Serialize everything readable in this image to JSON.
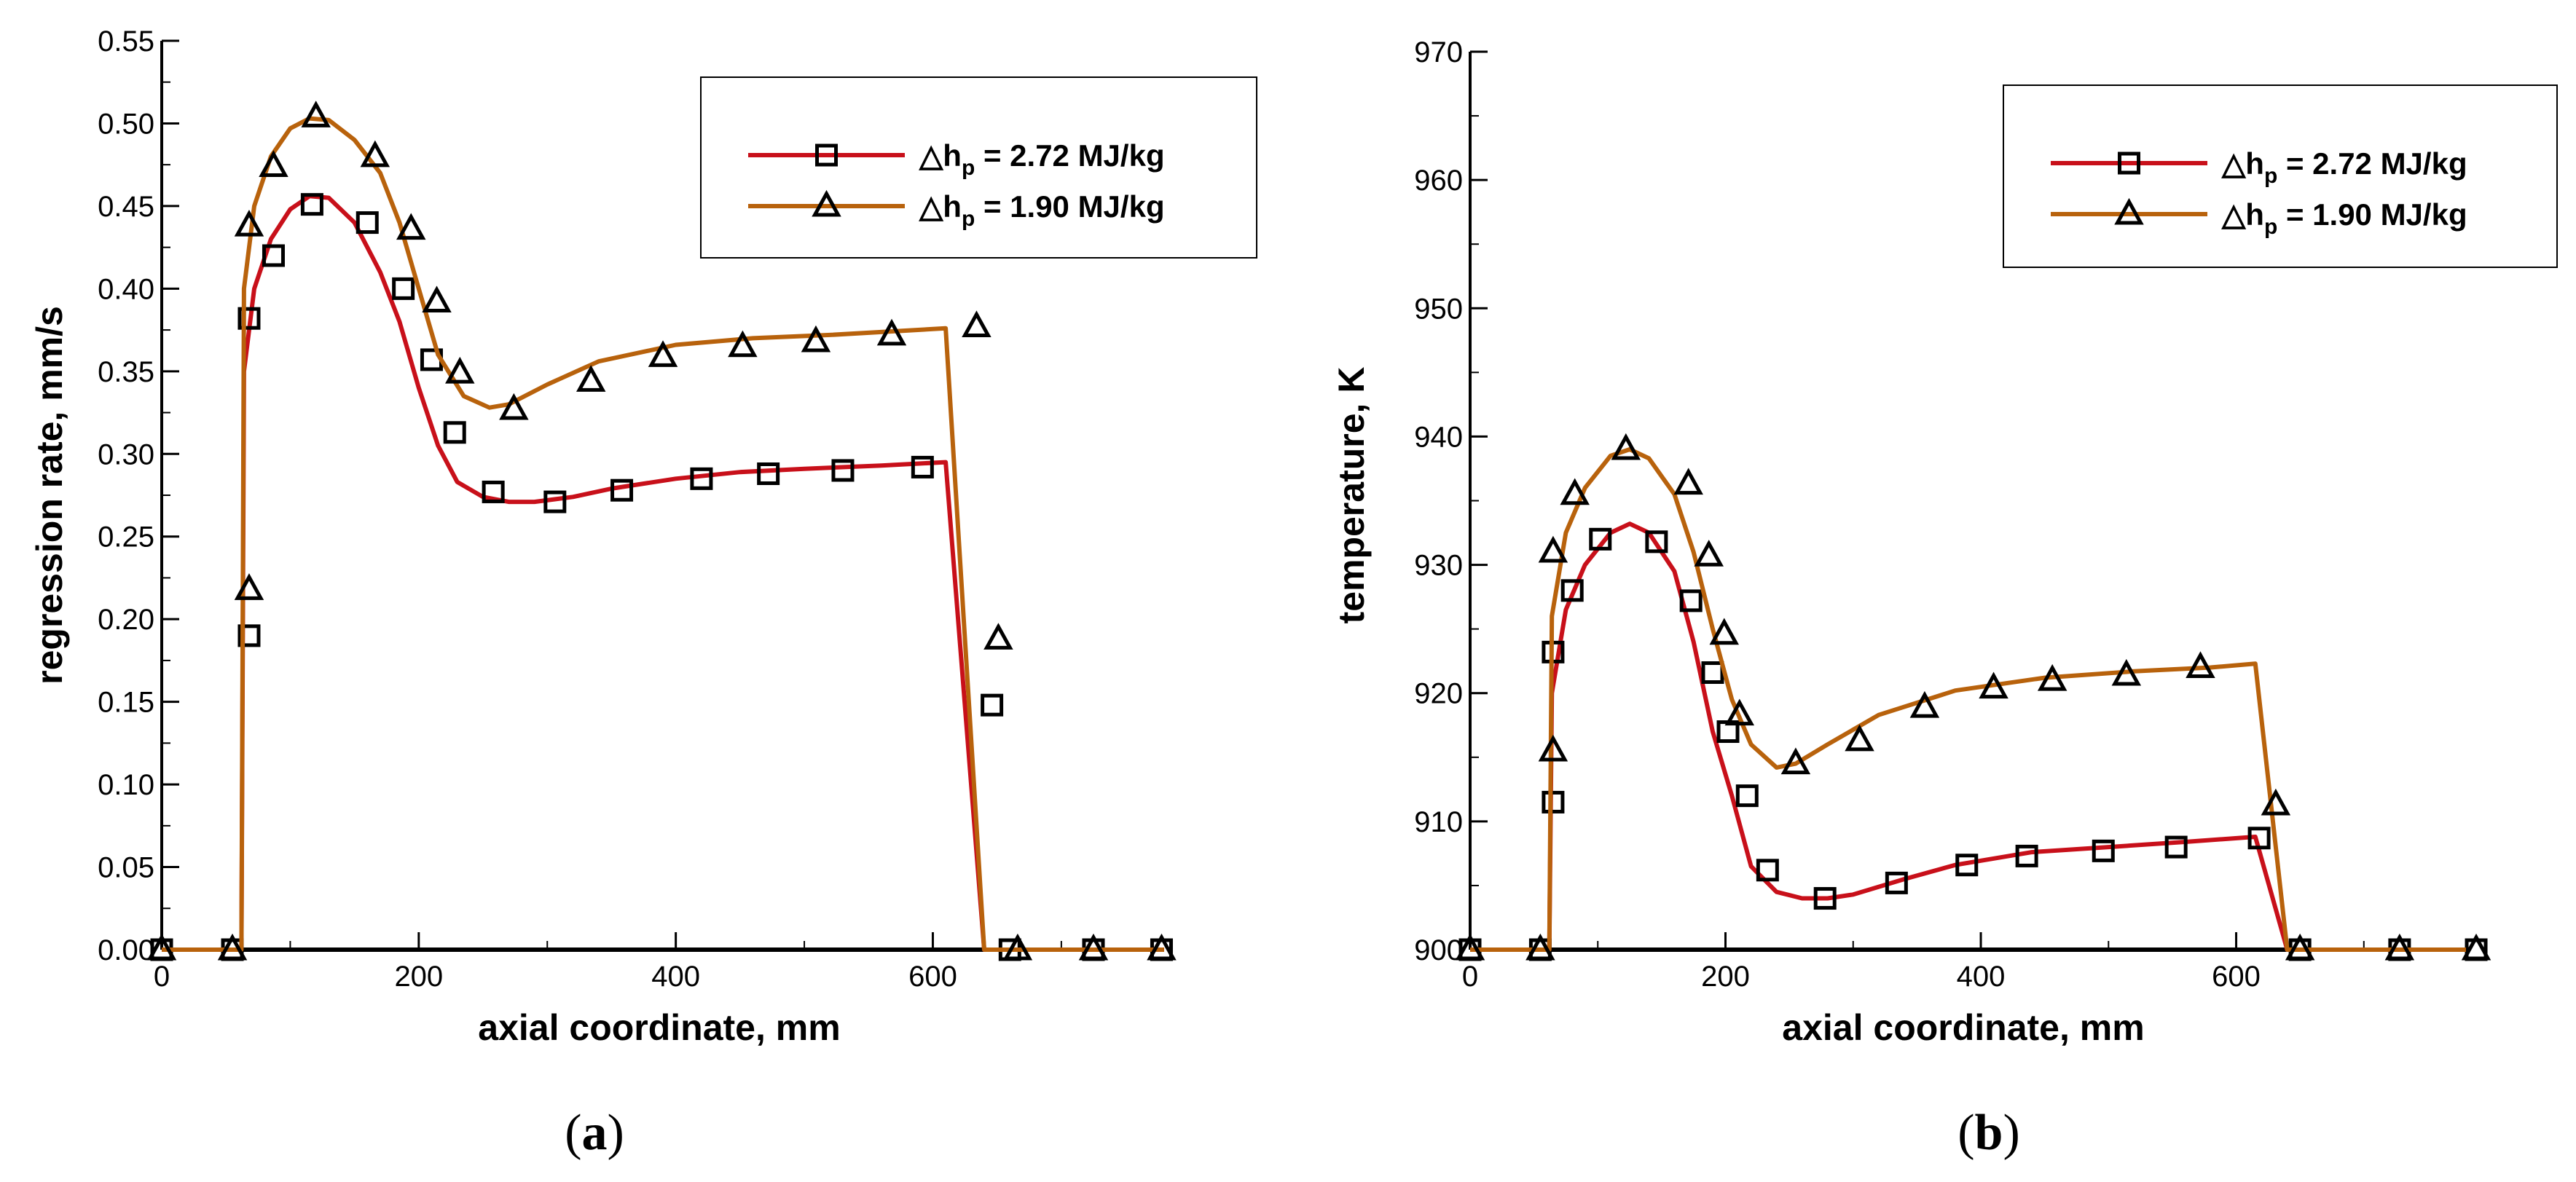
{
  "colors": {
    "series1": "#c8101a",
    "series2": "#b8620c",
    "axis": "#000000"
  },
  "chart_data": [
    {
      "type": "line",
      "caption_letter": "a",
      "xlabel": "axial coordinate, mm",
      "ylabel": "regression rate, mm/s",
      "xlim": [
        0,
        780
      ],
      "ylim": [
        0,
        0.55
      ],
      "xticks": [
        0,
        200,
        400,
        600
      ],
      "xtick_labels": [
        "0",
        "200",
        "400",
        "600"
      ],
      "yticks": [
        0,
        0.05,
        0.1,
        0.15,
        0.2,
        0.25,
        0.3,
        0.35,
        0.4,
        0.45,
        0.5,
        0.55
      ],
      "ytick_labels": [
        "0.00",
        "0.05",
        "0.10",
        "0.15",
        "0.20",
        "0.25",
        "0.30",
        "0.35",
        "0.40",
        "0.45",
        "0.50",
        "0.55"
      ],
      "legend_position": "top-right",
      "series": [
        {
          "name": "2.72 MJ/kg",
          "legend_prefix": "△h",
          "legend_sub": "p",
          "legend_suffix": " = 2.72 MJ/kg",
          "marker": "square",
          "color_key": "series1",
          "curve": [
            [
              0,
              0
            ],
            [
              62,
              0
            ],
            [
              64,
              0.35
            ],
            [
              72,
              0.4
            ],
            [
              85,
              0.43
            ],
            [
              100,
              0.448
            ],
            [
              115,
              0.456
            ],
            [
              130,
              0.455
            ],
            [
              150,
              0.44
            ],
            [
              170,
              0.41
            ],
            [
              185,
              0.38
            ],
            [
              200,
              0.34
            ],
            [
              215,
              0.305
            ],
            [
              230,
              0.283
            ],
            [
              250,
              0.274
            ],
            [
              270,
              0.271
            ],
            [
              290,
              0.271
            ],
            [
              320,
              0.274
            ],
            [
              350,
              0.279
            ],
            [
              400,
              0.285
            ],
            [
              450,
              0.289
            ],
            [
              500,
              0.291
            ],
            [
              560,
              0.293
            ],
            [
              610,
              0.295
            ],
            [
              640,
              0
            ],
            [
              780,
              0
            ]
          ],
          "markers": [
            [
              0,
              0
            ],
            [
              55,
              0
            ],
            [
              68,
              0.19
            ],
            [
              68,
              0.382
            ],
            [
              87,
              0.42
            ],
            [
              117,
              0.451
            ],
            [
              160,
              0.44
            ],
            [
              188,
              0.4
            ],
            [
              210,
              0.357
            ],
            [
              228,
              0.313
            ],
            [
              258,
              0.277
            ],
            [
              306,
              0.271
            ],
            [
              358,
              0.278
            ],
            [
              420,
              0.285
            ],
            [
              472,
              0.288
            ],
            [
              530,
              0.29
            ],
            [
              592,
              0.292
            ],
            [
              646,
              0.148
            ],
            [
              660,
              0
            ],
            [
              725,
              0
            ],
            [
              778,
              0
            ]
          ]
        },
        {
          "name": "1.90 MJ/kg",
          "legend_prefix": "△h",
          "legend_sub": "p",
          "legend_suffix": " = 1.90 MJ/kg",
          "marker": "triangle",
          "color_key": "series2",
          "curve": [
            [
              0,
              0
            ],
            [
              62,
              0
            ],
            [
              64,
              0.4
            ],
            [
              72,
              0.45
            ],
            [
              85,
              0.48
            ],
            [
              100,
              0.497
            ],
            [
              115,
              0.503
            ],
            [
              130,
              0.502
            ],
            [
              150,
              0.49
            ],
            [
              170,
              0.47
            ],
            [
              185,
              0.44
            ],
            [
              200,
              0.4
            ],
            [
              215,
              0.36
            ],
            [
              235,
              0.335
            ],
            [
              255,
              0.328
            ],
            [
              270,
              0.33
            ],
            [
              300,
              0.342
            ],
            [
              340,
              0.356
            ],
            [
              400,
              0.366
            ],
            [
              460,
              0.37
            ],
            [
              520,
              0.372
            ],
            [
              610,
              0.376
            ],
            [
              640,
              0
            ],
            [
              780,
              0
            ]
          ],
          "markers": [
            [
              0,
              0
            ],
            [
              55,
              0
            ],
            [
              68,
              0.218
            ],
            [
              68,
              0.438
            ],
            [
              87,
              0.474
            ],
            [
              120,
              0.504
            ],
            [
              166,
              0.48
            ],
            [
              194,
              0.436
            ],
            [
              214,
              0.392
            ],
            [
              232,
              0.349
            ],
            [
              274,
              0.327
            ],
            [
              334,
              0.344
            ],
            [
              390,
              0.359
            ],
            [
              452,
              0.365
            ],
            [
              509,
              0.368
            ],
            [
              568,
              0.372
            ],
            [
              634,
              0.377
            ],
            [
              651,
              0.188
            ],
            [
              666,
              0
            ],
            [
              725,
              0
            ],
            [
              778,
              0
            ]
          ]
        }
      ]
    },
    {
      "type": "line",
      "caption_letter": "b",
      "xlabel": "axial coordinate, mm",
      "ylabel": "temperature, K",
      "xlim": [
        0,
        780
      ],
      "ylim": [
        900,
        970
      ],
      "xticks": [
        0,
        200,
        400,
        600
      ],
      "xtick_labels": [
        "0",
        "200",
        "400",
        "600"
      ],
      "yticks": [
        900,
        910,
        920,
        930,
        940,
        950,
        960,
        970
      ],
      "ytick_labels": [
        "900",
        "910",
        "920",
        "930",
        "940",
        "950",
        "960",
        "970"
      ],
      "legend_position": "top-right",
      "series": [
        {
          "name": "2.72 MJ/kg",
          "legend_prefix": "△h",
          "legend_sub": "p",
          "legend_suffix": " = 2.72 MJ/kg",
          "marker": "square",
          "color_key": "series1",
          "curve": [
            [
              0,
              900
            ],
            [
              62,
              900
            ],
            [
              64,
              920
            ],
            [
              75,
              926.5
            ],
            [
              90,
              930
            ],
            [
              110,
              932.5
            ],
            [
              125,
              933.2
            ],
            [
              140,
              932.5
            ],
            [
              160,
              929.5
            ],
            [
              175,
              924
            ],
            [
              190,
              917
            ],
            [
              205,
              912
            ],
            [
              220,
              906.5
            ],
            [
              240,
              904.5
            ],
            [
              260,
              904
            ],
            [
              280,
              904
            ],
            [
              300,
              904.3
            ],
            [
              340,
              905.5
            ],
            [
              380,
              906.6
            ],
            [
              440,
              907.6
            ],
            [
              500,
              908
            ],
            [
              560,
              908.4
            ],
            [
              615,
              908.8
            ],
            [
              640,
              900
            ],
            [
              780,
              900
            ]
          ],
          "markers": [
            [
              0,
              900
            ],
            [
              55,
              900
            ],
            [
              65,
              911.5
            ],
            [
              65,
              923.2
            ],
            [
              80,
              928
            ],
            [
              102,
              932
            ],
            [
              146,
              931.8
            ],
            [
              173,
              927.2
            ],
            [
              190,
              921.6
            ],
            [
              202,
              917
            ],
            [
              217,
              912
            ],
            [
              233,
              906.2
            ],
            [
              278,
              904
            ],
            [
              334,
              905.2
            ],
            [
              389,
              906.6
            ],
            [
              436,
              907.3
            ],
            [
              496,
              907.7
            ],
            [
              553,
              908
            ],
            [
              618,
              908.7
            ],
            [
              650,
              900
            ],
            [
              728,
              900
            ],
            [
              788,
              900
            ]
          ]
        },
        {
          "name": "1.90 MJ/kg",
          "legend_prefix": "△h",
          "legend_sub": "p",
          "legend_suffix": " = 1.90 MJ/kg",
          "marker": "triangle",
          "color_key": "series2",
          "curve": [
            [
              0,
              900
            ],
            [
              62,
              900
            ],
            [
              64,
              926
            ],
            [
              75,
              932.5
            ],
            [
              90,
              936
            ],
            [
              110,
              938.5
            ],
            [
              125,
              939
            ],
            [
              140,
              938.3
            ],
            [
              160,
              935.5
            ],
            [
              175,
              931
            ],
            [
              190,
              925
            ],
            [
              205,
              919.5
            ],
            [
              220,
              916
            ],
            [
              240,
              914.2
            ],
            [
              255,
              914.5
            ],
            [
              280,
              916
            ],
            [
              320,
              918.3
            ],
            [
              380,
              920.2
            ],
            [
              450,
              921.2
            ],
            [
              520,
              921.7
            ],
            [
              580,
              922
            ],
            [
              615,
              922.3
            ],
            [
              640,
              900
            ],
            [
              780,
              900
            ]
          ],
          "markers": [
            [
              0,
              900
            ],
            [
              55,
              900
            ],
            [
              65,
              915.5
            ],
            [
              65,
              931
            ],
            [
              82,
              935.5
            ],
            [
              122,
              939
            ],
            [
              171,
              936.3
            ],
            [
              187,
              930.7
            ],
            [
              199,
              924.6
            ],
            [
              211,
              918.3
            ],
            [
              255,
              914.5
            ],
            [
              305,
              916.3
            ],
            [
              356,
              918.9
            ],
            [
              410,
              920.4
            ],
            [
              456,
              921
            ],
            [
              514,
              921.4
            ],
            [
              572,
              922
            ],
            [
              631,
              911.3
            ],
            [
              650,
              900
            ],
            [
              728,
              900
            ],
            [
              788,
              900
            ]
          ]
        }
      ]
    }
  ]
}
